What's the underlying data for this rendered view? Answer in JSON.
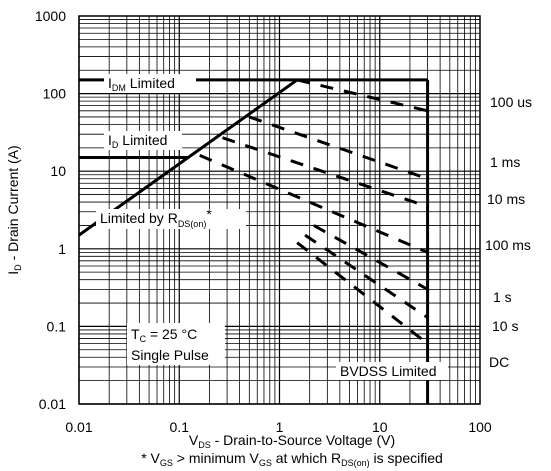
{
  "chart_data": {
    "type": "line",
    "title": "",
    "xlabel": {
      "prefix": "V",
      "sub": "DS",
      "rest": " - Drain-to-Source Voltage (V)"
    },
    "ylabel": {
      "prefix": "I",
      "sub": "D",
      "rest": " - Drain Current (A)"
    },
    "footnote": {
      "p1": "* V",
      "s1": "GS",
      "p2": " > minimum V",
      "s2": "GS",
      "p3": " at which R",
      "s3": "DS(on)",
      "p4": " is specified"
    },
    "x_scale": "log",
    "y_scale": "log",
    "xlim": [
      0.01,
      100
    ],
    "ylim": [
      0.01,
      1000
    ],
    "x_ticks": [
      "0.01",
      "0.1",
      "1",
      "10",
      "100"
    ],
    "y_ticks": [
      "0.01",
      "0.1",
      "1",
      "10",
      "100",
      "1000"
    ],
    "grid": true,
    "limits": {
      "idm": {
        "main": "I",
        "sub": "DM",
        "rest": " Limited",
        "value": 150
      },
      "id": {
        "main": "I",
        "sub": "D",
        "rest": " Limited",
        "value": 15
      },
      "rds": {
        "main": "Limited by R",
        "sub": "DS(on)",
        "rest": "*",
        "points": [
          [
            0.01,
            1.5
          ],
          [
            1.5,
            150
          ]
        ]
      },
      "bvdss": {
        "label": "BVDSS Limited",
        "value": 30
      }
    },
    "pulse_lines": [
      {
        "name": "100 us",
        "from": [
          1.5,
          150
        ],
        "to": [
          30,
          60
        ]
      },
      {
        "name": "1 ms",
        "from": [
          0.5,
          50
        ],
        "to": [
          30,
          8
        ]
      },
      {
        "name": "10 ms",
        "from": [
          0.27,
          27
        ],
        "to": [
          30,
          3.5
        ]
      },
      {
        "name": "100 ms",
        "from": [
          0.16,
          16
        ],
        "to": [
          30,
          0.9
        ]
      },
      {
        "name": "1 s",
        "from": [
          2.2,
          2
        ],
        "to": [
          30,
          0.3
        ]
      },
      {
        "name": "10 s",
        "from": [
          1.8,
          1.5
        ],
        "to": [
          30,
          0.13
        ]
      },
      {
        "name": "DC",
        "from": [
          1.5,
          1.2
        ],
        "to": [
          30,
          0.06
        ]
      }
    ],
    "annotations": {
      "tc": {
        "main": "T",
        "sub": "C",
        "rest": " = 25 °C"
      },
      "pulse": "Single Pulse"
    }
  }
}
